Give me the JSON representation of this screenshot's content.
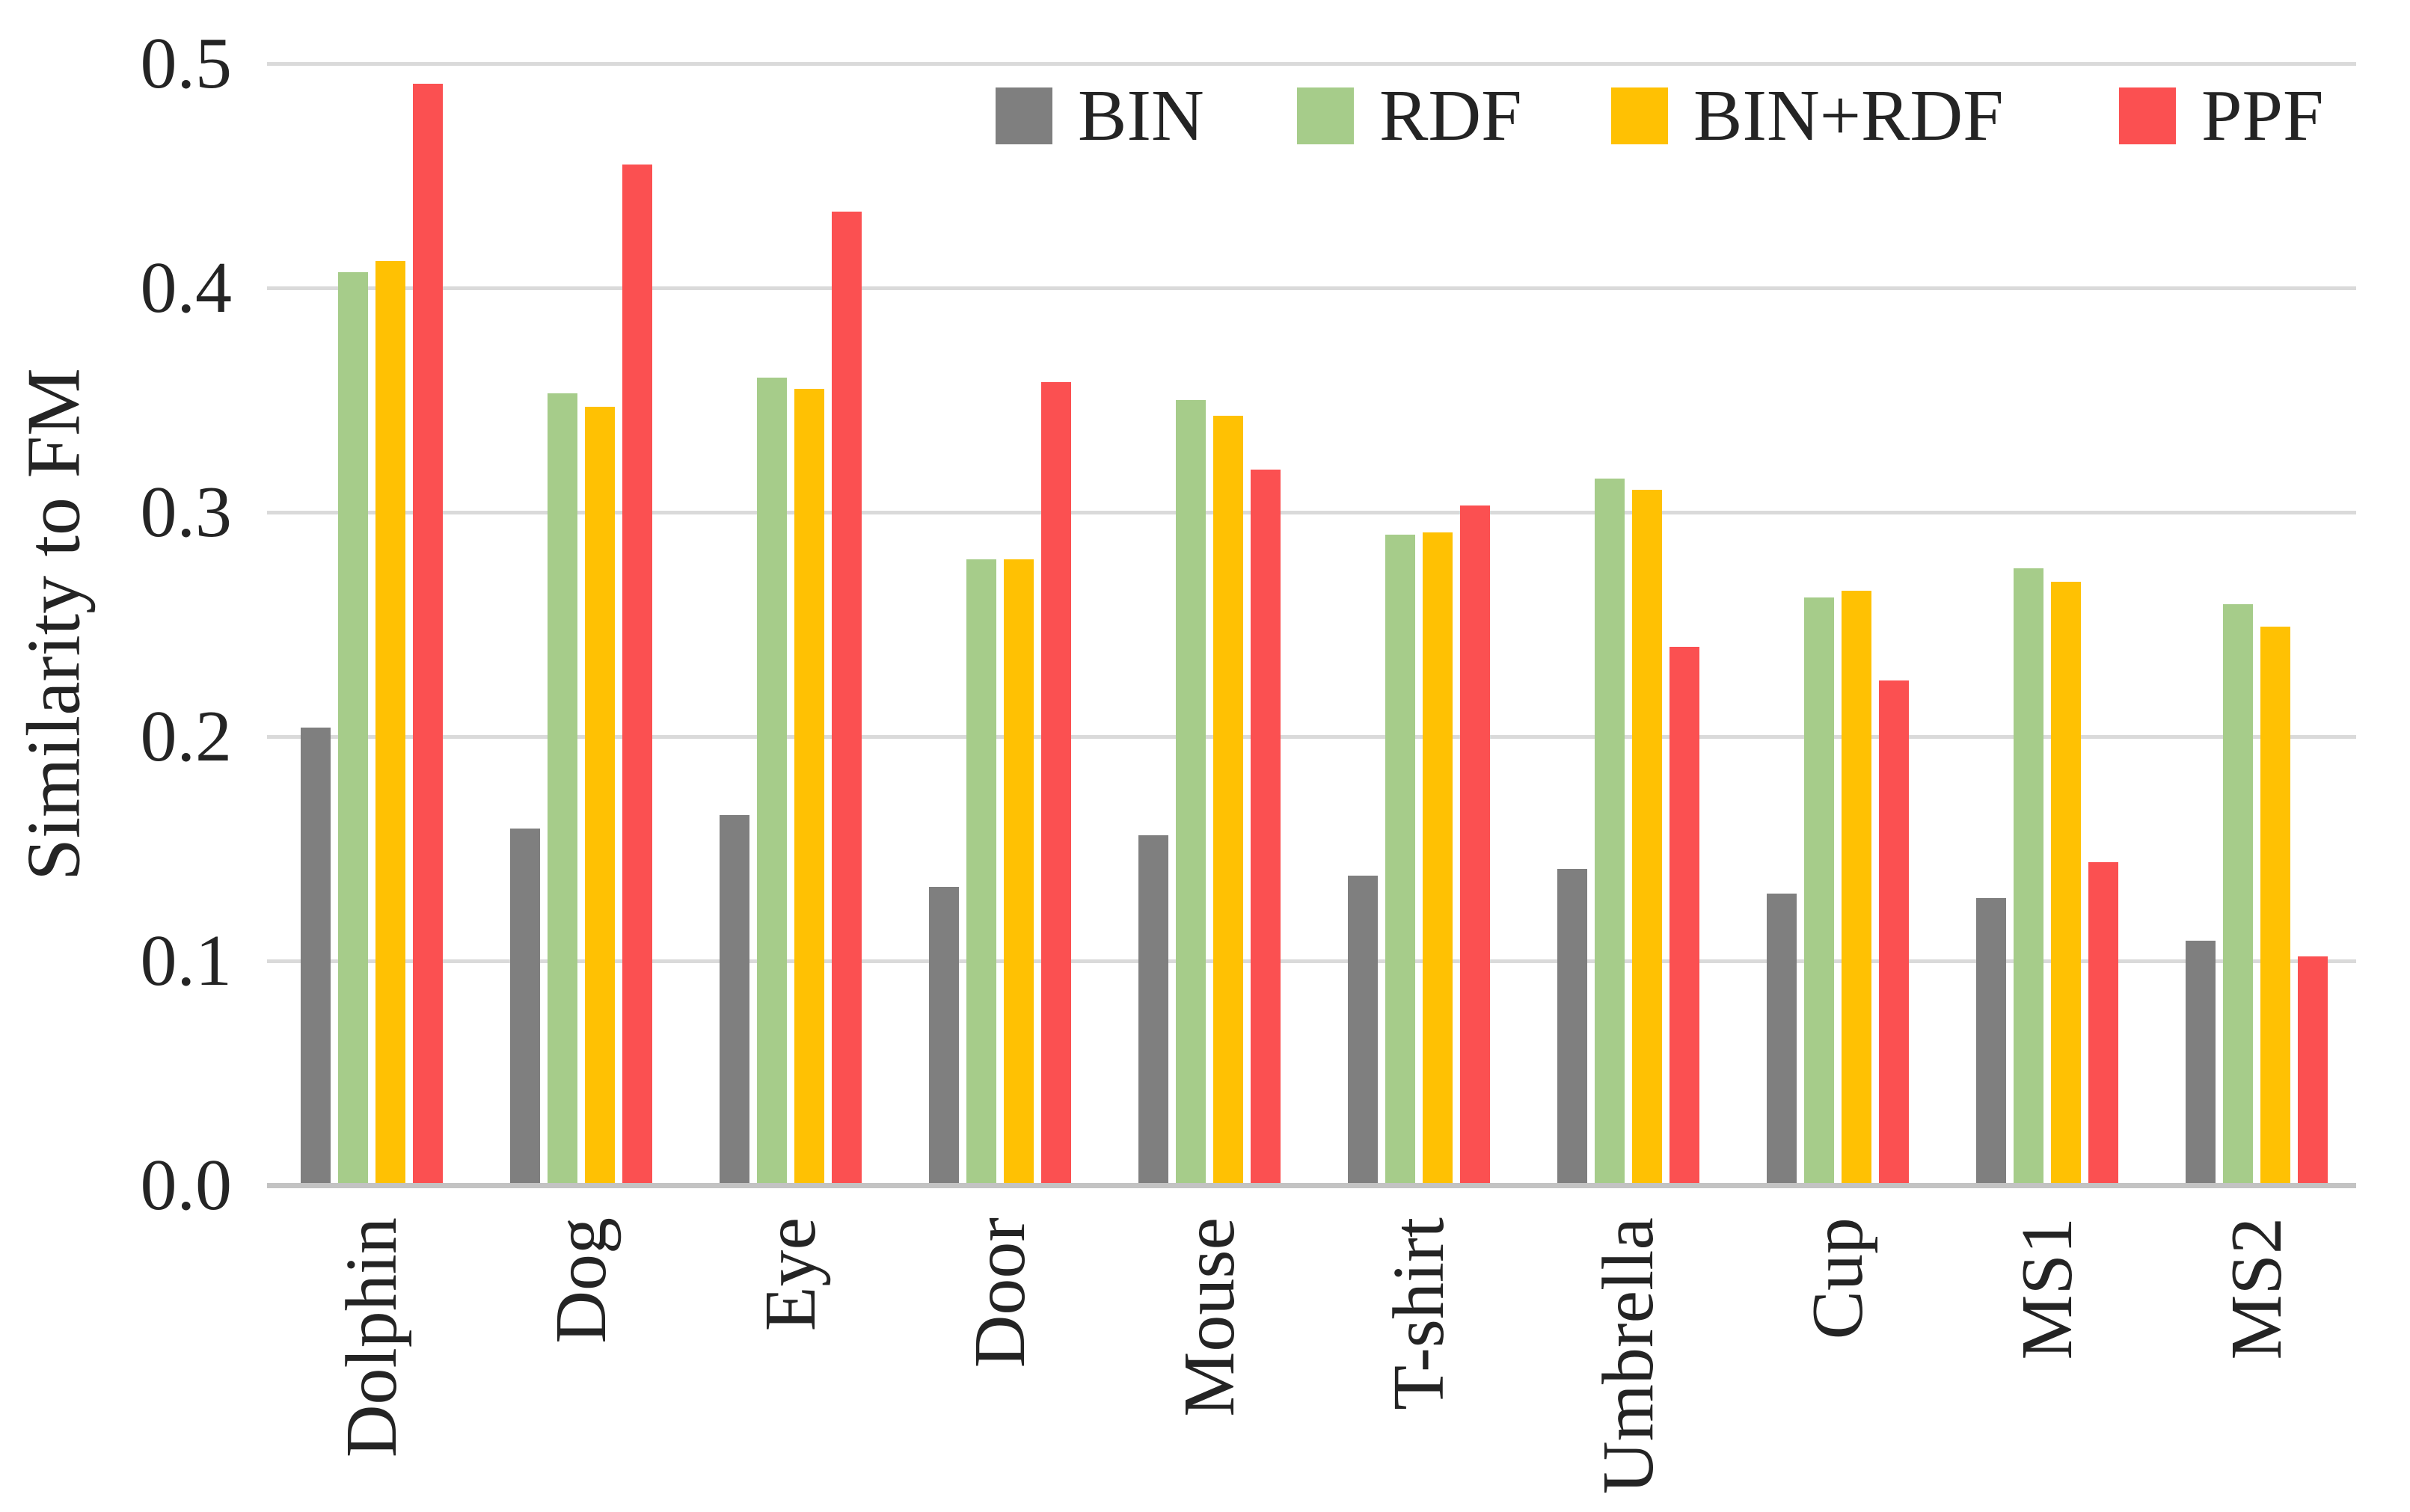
{
  "figure": {
    "background": "#ffffff",
    "text_color": "#242424",
    "gridline_color": "#dadada",
    "axis_line_color": "#c3c3c3"
  },
  "chart_data": {
    "type": "bar",
    "title": "",
    "xlabel": "",
    "ylabel": "Similarity to FM",
    "ylim": [
      0.0,
      0.5
    ],
    "ytick_labels": [
      "0.0",
      "0.1",
      "0.2",
      "0.3",
      "0.4",
      "0.5"
    ],
    "grid": "horizontal",
    "legend_position": "top-inside",
    "categories": [
      "Dolphin",
      "Dog",
      "Eye",
      "Door",
      "Mouse",
      "T-shirt",
      "Umbrella",
      "Cup",
      "MS1",
      "MS2"
    ],
    "series": [
      {
        "name": "BIN",
        "color": "#7f7f7f",
        "values": [
          0.203,
          0.158,
          0.164,
          0.132,
          0.155,
          0.137,
          0.14,
          0.129,
          0.127,
          0.108
        ]
      },
      {
        "name": "RDF",
        "color": "#a6cc8a",
        "values": [
          0.406,
          0.352,
          0.359,
          0.278,
          0.349,
          0.289,
          0.314,
          0.261,
          0.274,
          0.258
        ]
      },
      {
        "name": "BIN+RDF",
        "color": "#ffc103",
        "values": [
          0.411,
          0.346,
          0.354,
          0.278,
          0.342,
          0.29,
          0.309,
          0.264,
          0.268,
          0.248
        ]
      },
      {
        "name": "PPF",
        "color": "#fb5051",
        "values": [
          0.49,
          0.454,
          0.433,
          0.357,
          0.318,
          0.302,
          0.239,
          0.224,
          0.143,
          0.101
        ]
      }
    ]
  }
}
